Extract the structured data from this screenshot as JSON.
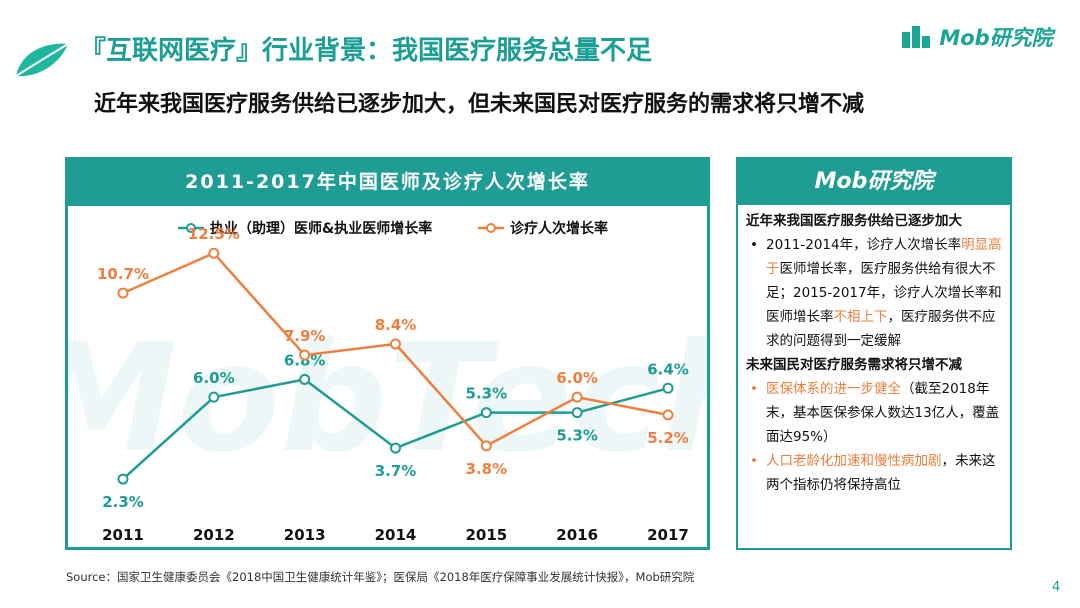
{
  "header": {
    "title": "『互联网医疗』行业背景：我国医疗服务总量不足",
    "subtitle": "近年来我国医疗服务供给已逐步加大，但未来国民对医疗服务的需求将只增不减",
    "brand": "Mob研究院"
  },
  "colors": {
    "teal": "#1f9c93",
    "orange": "#ef7f3e"
  },
  "chart_data": {
    "type": "line",
    "title": "2011-2017年中国医师及诊疗人次增长率",
    "categories": [
      "2011",
      "2012",
      "2013",
      "2014",
      "2015",
      "2016",
      "2017"
    ],
    "series": [
      {
        "name": "执业（助理）医师&执业医师增长率",
        "color": "#1f9c93",
        "values": [
          2.3,
          6.0,
          6.8,
          3.7,
          5.3,
          5.3,
          6.4
        ],
        "labels": [
          "2.3%",
          "6.0%",
          "6.8%",
          "3.7%",
          "5.3%",
          "5.3%",
          "6.4%"
        ]
      },
      {
        "name": "诊疗人次增长率",
        "color": "#ef7f3e",
        "values": [
          10.7,
          12.5,
          7.9,
          8.4,
          3.8,
          6.0,
          5.2
        ],
        "labels": [
          "10.7%",
          "12.5%",
          "7.9%",
          "8.4%",
          "3.8%",
          "6.0%",
          "5.2%"
        ]
      }
    ],
    "ylim": [
      0,
      14
    ],
    "grid": false,
    "legend": "top",
    "watermark": "MobTech"
  },
  "side_panel": {
    "logo": "Mob研究院",
    "section1_title": "近年来我国医疗服务供给已逐步加大",
    "s1_b1_a": "2011-2014年，诊疗人次增长率",
    "s1_b1_hl1": "明显高于",
    "s1_b1_b": "医师增长率，医疗服务供给有很大不足；2015-2017年，诊疗人次增长率和医师增长率",
    "s1_b1_hl2": "不相上下",
    "s1_b1_c": "，医疗服务供不应求的问题得到一定缓解",
    "section2_title": "未来国民对医疗服务需求将只增不减",
    "s2_b1_hl": "医保体系的进一步健全",
    "s2_b1_rest": "（截至2018年末，基本医保参保人数达13亿人，覆盖面达95%）",
    "s2_b2_hl": "人口老龄化加速和慢性病加剧",
    "s2_b2_rest": "，未来这两个指标仍将保持高位",
    "bullet_char": "•"
  },
  "footer": {
    "source": "Source：国家卫生健康委员会《2018中国卫生健康统计年鉴》；医保局《2018年医疗保障事业发展统计快报》，Mob研究院",
    "page": "4"
  }
}
